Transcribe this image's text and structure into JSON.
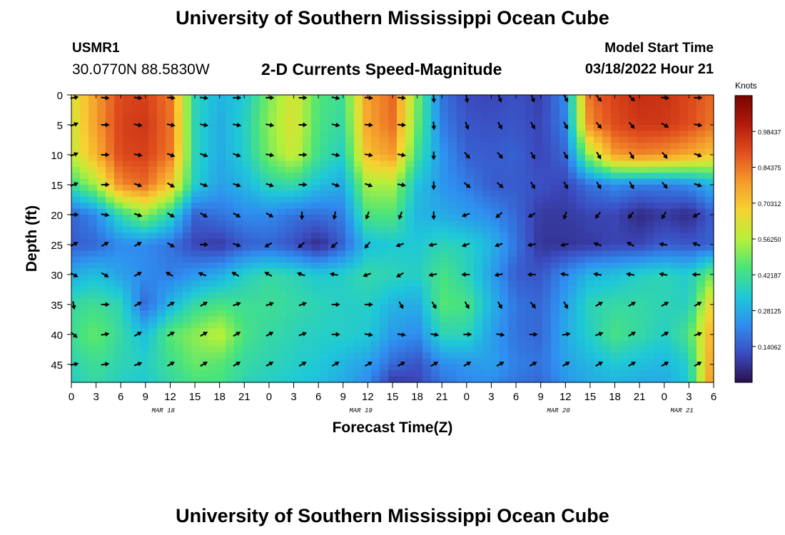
{
  "page": {
    "title": "University of Southern Mississippi Ocean Cube",
    "title_repeat": "University of Southern Mississippi Ocean Cube",
    "station_id": "USMR1",
    "coordinates": "30.0770N  88.5830W",
    "subtitle": "2-D Currents Speed-Magnitude",
    "model_start_label": "Model Start Time",
    "model_start_value": "03/18/2022 Hour 21"
  },
  "chart_data": {
    "type": "heatmap",
    "title": "2-D Currents Speed-Magnitude",
    "xlabel": "Forecast Time(Z)",
    "ylabel": "Depth (ft)",
    "x_ticks": [
      "0",
      "3",
      "6",
      "9",
      "12",
      "15",
      "18",
      "21",
      "0",
      "3",
      "6",
      "9",
      "12",
      "15",
      "18",
      "21",
      "0",
      "3",
      "6",
      "9",
      "12",
      "15",
      "18",
      "21",
      "0",
      "3",
      "6"
    ],
    "x_range_hours": [
      0,
      78
    ],
    "date_labels": [
      {
        "label": "MAR 18",
        "hour": 11.5
      },
      {
        "label": "MAR 19",
        "hour": 35.5
      },
      {
        "label": "MAR 20",
        "hour": 59.5
      },
      {
        "label": "MAR 21",
        "hour": 74.5
      }
    ],
    "y_ticks": [
      "0",
      "5",
      "10",
      "15",
      "20",
      "25",
      "30",
      "35",
      "40",
      "45"
    ],
    "y_range_ft": [
      0,
      48
    ],
    "y_inverted": true,
    "colorbar": {
      "unit_label": "Knots",
      "tick_labels": [
        "0.98437",
        "0.84375",
        "0.70312",
        "0.56250",
        "0.42187",
        "0.28125",
        "0.14062"
      ],
      "range": [
        0,
        1.125
      ],
      "colormap": [
        "#2b0f50",
        "#3b4cc0",
        "#2f8ef0",
        "#1ec8d8",
        "#4be47a",
        "#b6f03a",
        "#f7d331",
        "#f49a2c",
        "#e2501f",
        "#b21b0b",
        "#780500"
      ]
    },
    "speed_field": {
      "x_hours": [
        0,
        3,
        6,
        9,
        12,
        15,
        18,
        21,
        24,
        27,
        30,
        33,
        36,
        39,
        42,
        45,
        48,
        51,
        54,
        57,
        60,
        63,
        66,
        69,
        72,
        75,
        78
      ],
      "depth_ft": [
        0,
        5,
        10,
        15,
        20,
        25,
        30,
        35,
        40,
        45,
        48
      ],
      "values": [
        [
          0.62,
          0.78,
          0.92,
          0.93,
          0.84,
          0.38,
          0.3,
          0.34,
          0.5,
          0.62,
          0.45,
          0.42,
          0.78,
          0.86,
          0.5,
          0.18,
          0.11,
          0.1,
          0.12,
          0.09,
          0.22,
          0.86,
          0.93,
          0.97,
          0.96,
          0.92,
          0.86
        ],
        [
          0.6,
          0.78,
          0.93,
          0.95,
          0.85,
          0.38,
          0.28,
          0.36,
          0.52,
          0.63,
          0.44,
          0.4,
          0.77,
          0.85,
          0.48,
          0.2,
          0.13,
          0.12,
          0.13,
          0.1,
          0.2,
          0.82,
          0.91,
          0.95,
          0.95,
          0.91,
          0.84
        ],
        [
          0.58,
          0.74,
          0.92,
          0.93,
          0.84,
          0.38,
          0.28,
          0.35,
          0.5,
          0.6,
          0.42,
          0.36,
          0.72,
          0.78,
          0.42,
          0.24,
          0.15,
          0.14,
          0.15,
          0.1,
          0.16,
          0.55,
          0.78,
          0.82,
          0.8,
          0.76,
          0.7
        ],
        [
          0.42,
          0.55,
          0.82,
          0.86,
          0.7,
          0.36,
          0.26,
          0.3,
          0.38,
          0.4,
          0.32,
          0.28,
          0.55,
          0.55,
          0.33,
          0.24,
          0.2,
          0.14,
          0.14,
          0.12,
          0.1,
          0.18,
          0.22,
          0.2,
          0.2,
          0.22,
          0.3
        ],
        [
          0.15,
          0.22,
          0.4,
          0.52,
          0.38,
          0.15,
          0.18,
          0.22,
          0.22,
          0.18,
          0.17,
          0.2,
          0.45,
          0.45,
          0.3,
          0.28,
          0.25,
          0.22,
          0.16,
          0.08,
          0.08,
          0.1,
          0.1,
          0.05,
          0.08,
          0.05,
          0.15
        ],
        [
          0.14,
          0.16,
          0.22,
          0.22,
          0.18,
          0.1,
          0.08,
          0.14,
          0.16,
          0.12,
          0.05,
          0.15,
          0.32,
          0.34,
          0.34,
          0.38,
          0.36,
          0.3,
          0.18,
          0.07,
          0.07,
          0.08,
          0.1,
          0.1,
          0.14,
          0.13,
          0.15
        ],
        [
          0.28,
          0.32,
          0.26,
          0.22,
          0.2,
          0.24,
          0.28,
          0.36,
          0.4,
          0.38,
          0.34,
          0.36,
          0.4,
          0.38,
          0.36,
          0.44,
          0.38,
          0.26,
          0.14,
          0.13,
          0.22,
          0.3,
          0.32,
          0.36,
          0.38,
          0.35,
          0.5
        ],
        [
          0.4,
          0.42,
          0.38,
          0.16,
          0.3,
          0.4,
          0.44,
          0.42,
          0.42,
          0.4,
          0.38,
          0.36,
          0.36,
          0.3,
          0.28,
          0.46,
          0.44,
          0.3,
          0.18,
          0.16,
          0.26,
          0.38,
          0.4,
          0.4,
          0.38,
          0.36,
          0.7
        ],
        [
          0.42,
          0.48,
          0.4,
          0.32,
          0.46,
          0.52,
          0.58,
          0.44,
          0.4,
          0.38,
          0.36,
          0.36,
          0.34,
          0.25,
          0.22,
          0.38,
          0.38,
          0.26,
          0.18,
          0.16,
          0.28,
          0.36,
          0.44,
          0.4,
          0.36,
          0.44,
          0.78
        ],
        [
          0.38,
          0.42,
          0.38,
          0.36,
          0.42,
          0.48,
          0.46,
          0.4,
          0.38,
          0.36,
          0.34,
          0.3,
          0.26,
          0.16,
          0.12,
          0.22,
          0.24,
          0.26,
          0.2,
          0.18,
          0.26,
          0.3,
          0.34,
          0.32,
          0.3,
          0.36,
          0.82
        ],
        [
          0.36,
          0.4,
          0.36,
          0.34,
          0.4,
          0.44,
          0.44,
          0.38,
          0.36,
          0.34,
          0.32,
          0.28,
          0.22,
          0.08,
          0.1,
          0.18,
          0.22,
          0.22,
          0.18,
          0.16,
          0.24,
          0.28,
          0.3,
          0.28,
          0.28,
          0.34,
          0.85
        ]
      ]
    },
    "direction_field": {
      "x_hours": [
        0,
        4,
        8,
        12,
        16,
        20,
        24,
        28,
        32,
        36,
        40,
        44,
        48,
        52,
        56,
        60,
        64,
        68,
        72,
        76
      ],
      "depth_ft": [
        0,
        5,
        10,
        15,
        20,
        25,
        30,
        35,
        40,
        45
      ],
      "angles_deg": [
        [
          80,
          95,
          95,
          95,
          95,
          90,
          90,
          90,
          100,
          95,
          95,
          175,
          170,
          160,
          160,
          150,
          140,
          135,
          95,
          90
        ],
        [
          70,
          90,
          100,
          100,
          100,
          100,
          100,
          90,
          100,
          95,
          95,
          175,
          160,
          150,
          150,
          150,
          140,
          140,
          120,
          100
        ],
        [
          70,
          90,
          100,
          110,
          110,
          110,
          100,
          90,
          100,
          100,
          100,
          180,
          140,
          140,
          150,
          150,
          150,
          150,
          140,
          110
        ],
        [
          70,
          90,
          110,
          120,
          110,
          110,
          110,
          90,
          110,
          110,
          100,
          180,
          130,
          130,
          150,
          150,
          150,
          150,
          140,
          110
        ],
        [
          90,
          100,
          110,
          120,
          120,
          120,
          120,
          180,
          190,
          200,
          200,
          180,
          250,
          230,
          240,
          200,
          220,
          220,
          210,
          240
        ],
        [
          60,
          60,
          60,
          120,
          90,
          110,
          240,
          230,
          230,
          220,
          250,
          260,
          250,
          250,
          260,
          260,
          290,
          300,
          280,
          290
        ],
        [
          120,
          120,
          60,
          300,
          290,
          300,
          300,
          290,
          280,
          250,
          240,
          260,
          270,
          260,
          270,
          280,
          280,
          280,
          280,
          270
        ],
        [
          170,
          90,
          60,
          60,
          60,
          70,
          70,
          70,
          90,
          90,
          150,
          150,
          150,
          150,
          140,
          150,
          60,
          60,
          60,
          60
        ],
        [
          130,
          80,
          60,
          60,
          60,
          60,
          60,
          70,
          90,
          100,
          100,
          100,
          90,
          100,
          90,
          80,
          70,
          60,
          60,
          70
        ],
        [
          80,
          80,
          70,
          60,
          60,
          60,
          60,
          60,
          60,
          60,
          60,
          60,
          60,
          60,
          60,
          60,
          60,
          60,
          60,
          60
        ]
      ]
    },
    "grid": false
  }
}
